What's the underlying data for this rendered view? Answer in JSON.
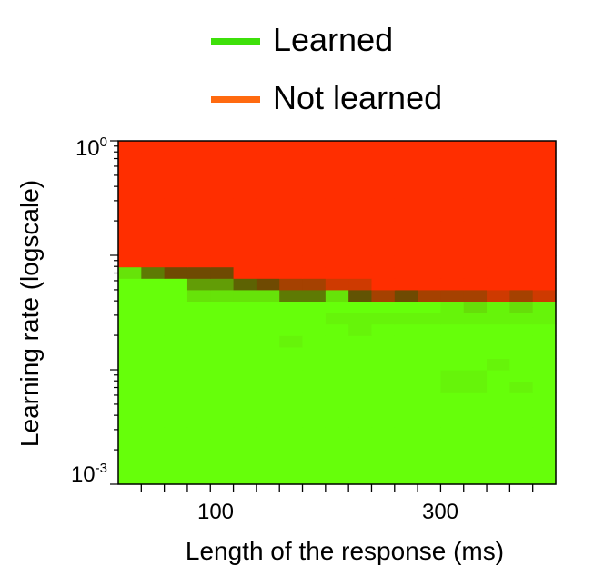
{
  "legend": {
    "entries": [
      {
        "label": "Learned",
        "color": "#3ee00a"
      },
      {
        "label": "Not learned",
        "color": "#ff6a10"
      }
    ]
  },
  "chart_data": {
    "type": "heatmap",
    "xlabel": "Length of the response (ms)",
    "ylabel": "Learning rate (logscale)",
    "x_tick_labels": [
      {
        "value": 100,
        "label": "100"
      },
      {
        "value": 300,
        "label": "300"
      }
    ],
    "y_tick_labels": [
      {
        "value": 1,
        "base": "10",
        "exp": "0"
      },
      {
        "value": 0.001,
        "base": "10",
        "exp": "-3"
      }
    ],
    "xlim": [
      20,
      400
    ],
    "ylim": [
      0.001,
      1
    ],
    "x_scale": "linear",
    "y_scale": "log",
    "grid": false,
    "legend_position": "top",
    "colors": {
      "learned": "#66ff0a",
      "not_learned": "#ff2e00"
    },
    "cell_width_ms": 20,
    "columns_x_start_ms": [
      20,
      40,
      60,
      80,
      100,
      120,
      140,
      160,
      180,
      200,
      220,
      240,
      260,
      280,
      300,
      320,
      340,
      360,
      380
    ],
    "row_log10_lr_start": [
      -3.0,
      -2.9,
      -2.8,
      -2.7,
      -2.6,
      -2.5,
      -2.4,
      -2.3,
      -2.2,
      -2.1,
      -2.0,
      -1.9,
      -1.8,
      -1.7,
      -1.6,
      -1.5,
      -1.4,
      -1.3,
      -1.2,
      -1.1,
      -1.0,
      -0.9,
      -0.8,
      -0.7,
      -0.6,
      -0.5,
      -0.4,
      -0.3,
      -0.2,
      -0.1
    ],
    "fraction_not_learned": [
      [
        0,
        0,
        0,
        0,
        0,
        0,
        0,
        0,
        0,
        0,
        0,
        0,
        0,
        0,
        0,
        0,
        0,
        0,
        0
      ],
      [
        0,
        0,
        0,
        0,
        0,
        0,
        0,
        0,
        0,
        0,
        0,
        0,
        0,
        0,
        0,
        0,
        0,
        0,
        0
      ],
      [
        0,
        0,
        0,
        0,
        0,
        0,
        0,
        0,
        0,
        0,
        0,
        0,
        0,
        0,
        0,
        0,
        0,
        0,
        0
      ],
      [
        0,
        0,
        0,
        0,
        0,
        0,
        0,
        0,
        0,
        0,
        0,
        0,
        0,
        0,
        0,
        0,
        0,
        0,
        0
      ],
      [
        0,
        0,
        0,
        0,
        0,
        0,
        0,
        0,
        0,
        0,
        0,
        0,
        0,
        0,
        0,
        0,
        0,
        0,
        0
      ],
      [
        0,
        0,
        0,
        0,
        0,
        0,
        0,
        0,
        0,
        0,
        0,
        0,
        0,
        0,
        0,
        0,
        0,
        0,
        0
      ],
      [
        0,
        0,
        0,
        0,
        0,
        0,
        0,
        0,
        0,
        0,
        0,
        0,
        0,
        0,
        0,
        0,
        0,
        0,
        0
      ],
      [
        0,
        0,
        0,
        0,
        0,
        0,
        0,
        0,
        0,
        0,
        0,
        0,
        0,
        0,
        0,
        0,
        0,
        0,
        0
      ],
      [
        0,
        0,
        0,
        0,
        0,
        0,
        0,
        0,
        0,
        0,
        0,
        0,
        0,
        0,
        0.02,
        0.02,
        0,
        0.02,
        0
      ],
      [
        0,
        0,
        0,
        0,
        0,
        0,
        0,
        0,
        0,
        0,
        0,
        0,
        0,
        0,
        0.02,
        0.02,
        0,
        0,
        0
      ],
      [
        0,
        0,
        0,
        0,
        0,
        0,
        0,
        0,
        0,
        0,
        0,
        0,
        0,
        0,
        0,
        0,
        0.02,
        0,
        0
      ],
      [
        0,
        0,
        0,
        0,
        0,
        0,
        0,
        0,
        0,
        0,
        0,
        0,
        0,
        0,
        0,
        0,
        0,
        0,
        0
      ],
      [
        0,
        0,
        0,
        0,
        0,
        0,
        0,
        0.02,
        0,
        0,
        0,
        0,
        0,
        0,
        0,
        0,
        0,
        0,
        0
      ],
      [
        0,
        0,
        0,
        0,
        0,
        0,
        0,
        0,
        0,
        0,
        0.02,
        0,
        0,
        0,
        0,
        0,
        0,
        0,
        0
      ],
      [
        0,
        0,
        0,
        0,
        0,
        0,
        0,
        0,
        0,
        0.02,
        0.02,
        0.02,
        0.02,
        0.02,
        0.02,
        0.02,
        0.02,
        0.02,
        0.02
      ],
      [
        0,
        0,
        0,
        0,
        0,
        0,
        0,
        0,
        0,
        0,
        0,
        0,
        0,
        0,
        0.02,
        0.06,
        0.02,
        0.06,
        0.02
      ],
      [
        0,
        0,
        0,
        0.05,
        0.05,
        0.05,
        0.05,
        0.3,
        0.3,
        0.05,
        0.5,
        0.8,
        0.6,
        0.8,
        0.8,
        0.8,
        0.9,
        0.8,
        0.9
      ],
      [
        0,
        0,
        0,
        0.2,
        0.2,
        0.4,
        0.6,
        0.8,
        0.8,
        0.9,
        0.9,
        1,
        1,
        1,
        1,
        1,
        1,
        1,
        1
      ],
      [
        0.05,
        0.3,
        0.6,
        0.6,
        0.6,
        1,
        1,
        1,
        1,
        1,
        1,
        1,
        1,
        1,
        1,
        1,
        1,
        1,
        1
      ],
      [
        1,
        1,
        1,
        1,
        1,
        1,
        1,
        1,
        1,
        1,
        1,
        1,
        1,
        1,
        1,
        1,
        1,
        1,
        1
      ],
      [
        1,
        1,
        1,
        1,
        1,
        1,
        1,
        1,
        1,
        1,
        1,
        1,
        1,
        1,
        1,
        1,
        1,
        1,
        1
      ],
      [
        1,
        1,
        1,
        1,
        1,
        1,
        1,
        1,
        1,
        1,
        1,
        1,
        1,
        1,
        1,
        1,
        1,
        1,
        1
      ],
      [
        1,
        1,
        1,
        1,
        1,
        1,
        1,
        1,
        1,
        1,
        1,
        1,
        1,
        1,
        1,
        1,
        1,
        1,
        1
      ],
      [
        1,
        1,
        1,
        1,
        1,
        1,
        1,
        1,
        1,
        1,
        1,
        1,
        1,
        1,
        1,
        1,
        1,
        1,
        1
      ],
      [
        1,
        1,
        1,
        1,
        1,
        1,
        1,
        1,
        1,
        1,
        1,
        1,
        1,
        1,
        1,
        1,
        1,
        1,
        1
      ],
      [
        1,
        1,
        1,
        1,
        1,
        1,
        1,
        1,
        1,
        1,
        1,
        1,
        1,
        1,
        1,
        1,
        1,
        1,
        1
      ],
      [
        1,
        1,
        1,
        1,
        1,
        1,
        1,
        1,
        1,
        1,
        1,
        1,
        1,
        1,
        1,
        1,
        1,
        1,
        1
      ],
      [
        1,
        1,
        1,
        1,
        1,
        1,
        1,
        1,
        1,
        1,
        1,
        1,
        1,
        1,
        1,
        1,
        1,
        1,
        1
      ],
      [
        1,
        1,
        1,
        1,
        1,
        1,
        1,
        1,
        1,
        1,
        1,
        1,
        1,
        1,
        1,
        1,
        1,
        1,
        1
      ],
      [
        1,
        1,
        1,
        1,
        1,
        1,
        1,
        1,
        1,
        1,
        1,
        1,
        1,
        1,
        1,
        1,
        1,
        1,
        1
      ]
    ]
  }
}
